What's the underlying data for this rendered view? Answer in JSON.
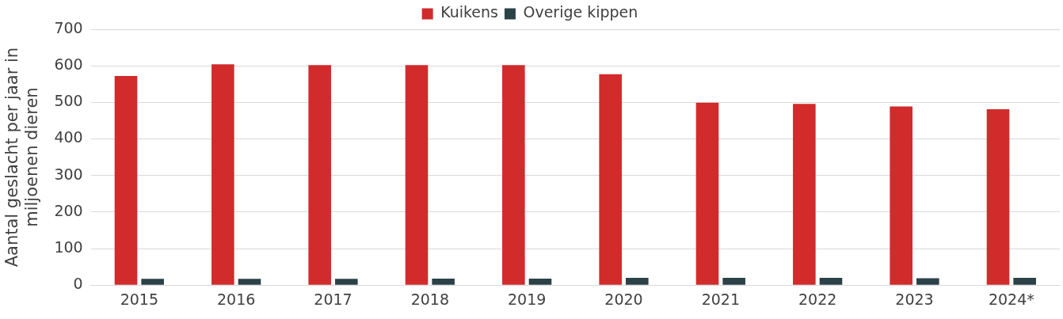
{
  "chart_data": {
    "type": "bar",
    "ylabel": "Aantal geslacht per jaar in miljoenen dieren",
    "categories": [
      "2015",
      "2016",
      "2017",
      "2018",
      "2019",
      "2020",
      "2021",
      "2022",
      "2023",
      "2024*"
    ],
    "series": [
      {
        "name": "Kuikens",
        "color": "#d12b2b",
        "values": [
          572,
          604,
          602,
          602,
          602,
          577,
          499,
          496,
          489,
          481
        ]
      },
      {
        "name": "Overige kippen",
        "color": "#2b4148",
        "values": [
          17,
          17,
          17,
          18,
          18,
          20,
          20,
          20,
          19,
          20
        ]
      }
    ],
    "ylim": [
      0,
      700
    ],
    "yticks": [
      0,
      100,
      200,
      300,
      400,
      500,
      600,
      700
    ],
    "grid": "y",
    "legend": "top"
  }
}
